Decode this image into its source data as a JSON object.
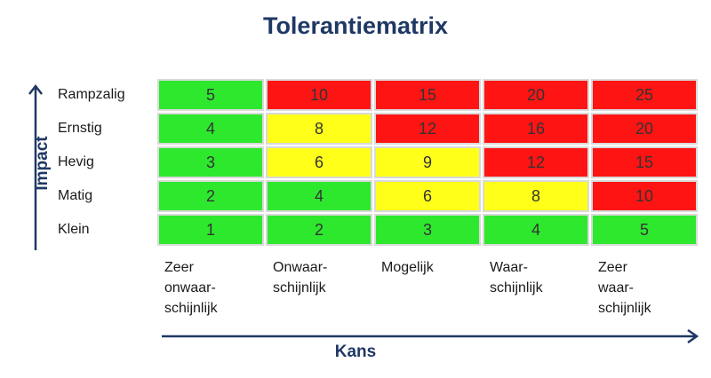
{
  "title": "Tolerantiematrix",
  "y_axis_label": "Impact",
  "x_axis_label": "Kans",
  "rows": [
    {
      "label": "Rampzalig",
      "values": [
        "5",
        "10",
        "15",
        "20",
        "25"
      ],
      "colors": [
        "green",
        "red",
        "red",
        "red",
        "red"
      ]
    },
    {
      "label": "Ernstig",
      "values": [
        "4",
        "8",
        "12",
        "16",
        "20"
      ],
      "colors": [
        "green",
        "yellow",
        "red",
        "red",
        "red"
      ]
    },
    {
      "label": "Hevig",
      "values": [
        "3",
        "6",
        "9",
        "12",
        "15"
      ],
      "colors": [
        "green",
        "yellow",
        "yellow",
        "red",
        "red"
      ]
    },
    {
      "label": "Matig",
      "values": [
        "2",
        "4",
        "6",
        "8",
        "10"
      ],
      "colors": [
        "green",
        "green",
        "yellow",
        "yellow",
        "red"
      ]
    },
    {
      "label": "Klein",
      "values": [
        "1",
        "2",
        "3",
        "4",
        "5"
      ],
      "colors": [
        "green",
        "green",
        "green",
        "green",
        "green"
      ]
    }
  ],
  "columns": [
    {
      "lines": [
        "Zeer",
        "onwaar-",
        "schijnlijk"
      ]
    },
    {
      "lines": [
        "Onwaar-",
        "schijnlijk"
      ]
    },
    {
      "lines": [
        "Mogelijk"
      ]
    },
    {
      "lines": [
        "Waar-",
        "schijnlijk"
      ]
    },
    {
      "lines": [
        "Zeer",
        "waar-",
        "schijnlijk"
      ]
    }
  ],
  "palette": {
    "green": "#2ee82e",
    "yellow": "#ffff1a",
    "red": "#ff1414",
    "accent": "#1f3864"
  }
}
